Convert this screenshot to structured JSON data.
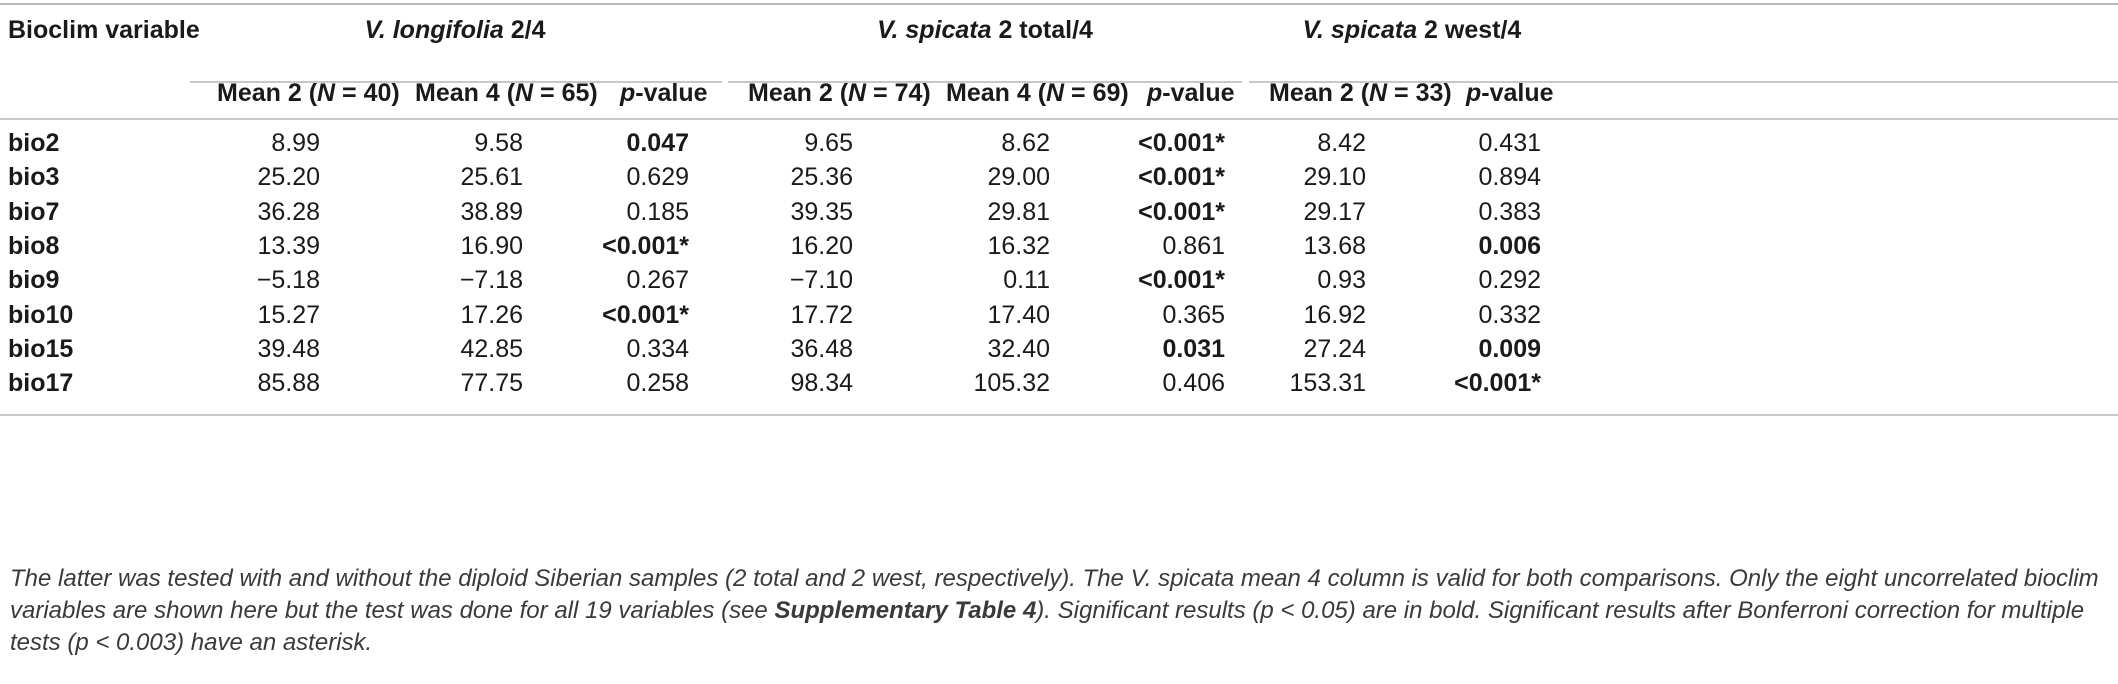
{
  "header": {
    "first_col": "Bioclim variable",
    "groups": [
      {
        "species": "V. longifolia",
        "suffix": " 2/4"
      },
      {
        "species": "V. spicata",
        "suffix": " 2 total/4"
      },
      {
        "species": "V. spicata",
        "suffix": " 2 west/4"
      }
    ],
    "cols": [
      {
        "pre": "Mean 2 (",
        "n": "N",
        "post": " = 40)"
      },
      {
        "pre": "Mean 4 (",
        "n": "N",
        "post": " = 65)"
      },
      {
        "p": "p",
        "post": "-value"
      },
      {
        "pre": "Mean 2 (",
        "n": "N",
        "post": " = 74)"
      },
      {
        "pre": "Mean 4 (",
        "n": "N",
        "post": " = 69)"
      },
      {
        "p": "p",
        "post": "-value"
      },
      {
        "pre": "Mean 2 (",
        "n": "N",
        "post": " = 33)"
      },
      {
        "p": "p",
        "post": "-value"
      }
    ]
  },
  "rows": [
    {
      "label": "bio2",
      "cells": [
        "8.99",
        "9.58",
        "0.047",
        "9.65",
        "8.62",
        "<0.001*",
        "8.42",
        "0.431"
      ],
      "bold": [
        false,
        false,
        true,
        false,
        false,
        true,
        false,
        false
      ]
    },
    {
      "label": "bio3",
      "cells": [
        "25.20",
        "25.61",
        "0.629",
        "25.36",
        "29.00",
        "<0.001*",
        "29.10",
        "0.894"
      ],
      "bold": [
        false,
        false,
        false,
        false,
        false,
        true,
        false,
        false
      ]
    },
    {
      "label": "bio7",
      "cells": [
        "36.28",
        "38.89",
        "0.185",
        "39.35",
        "29.81",
        "<0.001*",
        "29.17",
        "0.383"
      ],
      "bold": [
        false,
        false,
        false,
        false,
        false,
        true,
        false,
        false
      ]
    },
    {
      "label": "bio8",
      "cells": [
        "13.39",
        "16.90",
        "<0.001*",
        "16.20",
        "16.32",
        "0.861",
        "13.68",
        "0.006"
      ],
      "bold": [
        false,
        false,
        true,
        false,
        false,
        false,
        false,
        true
      ]
    },
    {
      "label": "bio9",
      "cells": [
        "−5.18",
        "−7.18",
        "0.267",
        "−7.10",
        "0.11",
        "<0.001*",
        "0.93",
        "0.292"
      ],
      "bold": [
        false,
        false,
        false,
        false,
        false,
        true,
        false,
        false
      ]
    },
    {
      "label": "bio10",
      "cells": [
        "15.27",
        "17.26",
        "<0.001*",
        "17.72",
        "17.40",
        "0.365",
        "16.92",
        "0.332"
      ],
      "bold": [
        false,
        false,
        true,
        false,
        false,
        false,
        false,
        false
      ]
    },
    {
      "label": "bio15",
      "cells": [
        "39.48",
        "42.85",
        "0.334",
        "36.48",
        "32.40",
        "0.031",
        "27.24",
        "0.009"
      ],
      "bold": [
        false,
        false,
        false,
        false,
        false,
        true,
        false,
        true
      ]
    },
    {
      "label": "bio17",
      "cells": [
        "85.88",
        "77.75",
        "0.258",
        "98.34",
        "105.32",
        "0.406",
        "153.31",
        "<0.001*"
      ],
      "bold": [
        false,
        false,
        false,
        false,
        false,
        false,
        false,
        true
      ]
    }
  ],
  "caption": {
    "part1": "The latter was tested with and without the diploid Siberian samples (2 total and 2 west, respectively). The V. spicata mean 4 column is valid for both comparisons. Only the eight uncorrelated bioclim variables are shown here but the test was done for all 19 variables (see ",
    "ref": "Supplementary Table 4",
    "part2": "). Significant results (p < 0.05) are in bold. Significant results after Bonferroni correction for multiple tests (p < 0.003) have an asterisk."
  }
}
